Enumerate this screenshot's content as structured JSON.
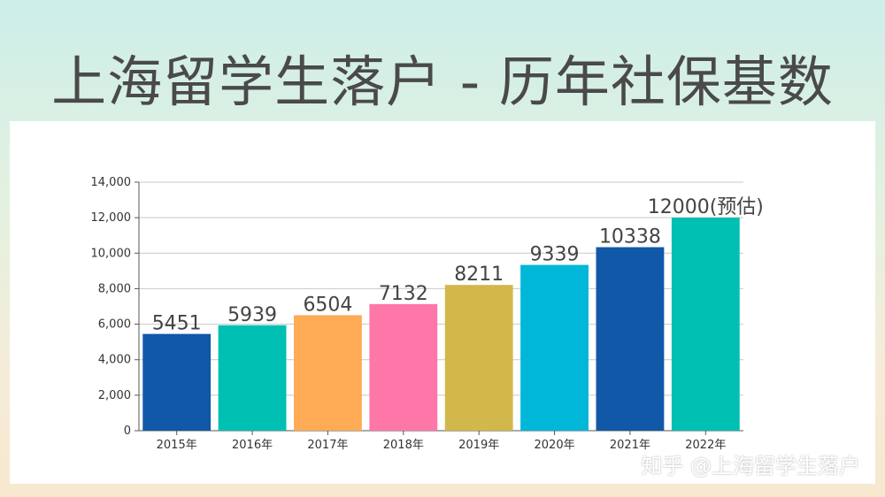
{
  "title": "上海留学生落户 - 历年社保基数",
  "watermark": "知乎 @上海留学生落户",
  "chart_data": {
    "type": "bar",
    "categories": [
      "2015年",
      "2016年",
      "2017年",
      "2018年",
      "2019年",
      "2020年",
      "2021年",
      "2022年"
    ],
    "values": [
      5451,
      5939,
      6504,
      7132,
      8211,
      9339,
      10338,
      12000
    ],
    "data_labels": [
      "5451",
      "5939",
      "6504",
      "7132",
      "8211",
      "9339",
      "10338",
      "12000(预估)"
    ],
    "bar_colors": [
      "#1158a8",
      "#00bfb3",
      "#ffaa55",
      "#ff77a8",
      "#d2b74a",
      "#00b7d8",
      "#1158a8",
      "#00bfb3"
    ],
    "label_colors": [
      "#444444",
      "#444444",
      "#444444",
      "#444444",
      "#444444",
      "#444444",
      "#444444",
      "#d32f2f"
    ],
    "ylim": [
      0,
      14000
    ],
    "yticks": [
      0,
      2000,
      4000,
      6000,
      8000,
      10000,
      12000,
      14000
    ],
    "ytick_labels": [
      "0",
      "2,000",
      "4,000",
      "6,000",
      "8,000",
      "10,000",
      "12,000",
      "14,000"
    ],
    "grid": true,
    "legend": "none",
    "xlabel": "",
    "ylabel": ""
  }
}
